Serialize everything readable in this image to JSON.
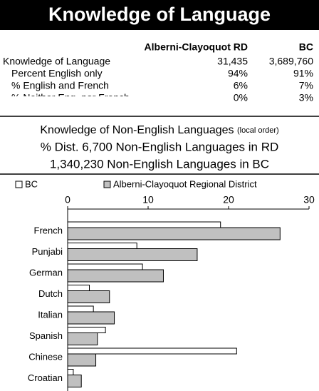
{
  "title": "Knowledge of Language",
  "table": {
    "columns": [
      "Alberni-Clayoquot RD",
      "BC"
    ],
    "rows": [
      [
        "Knowledge of Language",
        "31,435",
        "3,689,760"
      ],
      [
        "Percent English only",
        "94%",
        "91%"
      ],
      [
        "% English and French",
        "6%",
        "7%"
      ],
      [
        "% Neither Eng. nor French",
        "0%",
        "3%"
      ]
    ]
  },
  "lines": {
    "heading": "Knowledge of Non-English Languages",
    "heading_note": "(local order)",
    "rd": "% Dist. 6,700 Non-English Languages in RD",
    "bc": "1,340,230 Non-English Languages in BC"
  },
  "chart_data": {
    "type": "hbar",
    "categories": [
      "French",
      "Punjabi",
      "German",
      "Dutch",
      "Italian",
      "Spanish",
      "Chinese",
      "Croatian"
    ],
    "series": [
      {
        "name": "BC",
        "color": "#ffffff",
        "values": [
          19.0,
          8.6,
          9.3,
          2.7,
          3.2,
          4.7,
          21.0,
          0.7
        ]
      },
      {
        "name": "Alberni-Clayoquot Regional District",
        "color": "#c0c0c0",
        "values": [
          26.4,
          16.1,
          11.9,
          5.2,
          5.8,
          3.7,
          3.5,
          1.7
        ]
      }
    ],
    "xlim": [
      0,
      30
    ],
    "xticks": [
      0,
      10,
      20,
      30
    ]
  }
}
